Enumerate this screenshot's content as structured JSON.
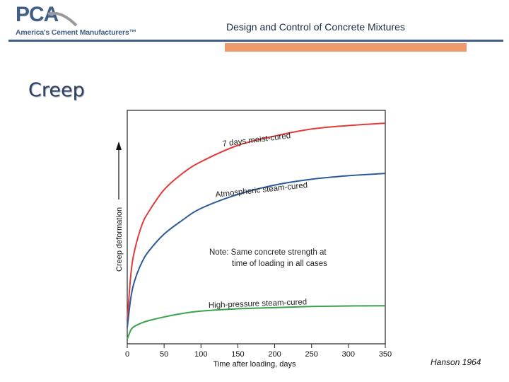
{
  "header": {
    "logo_text": "PCA",
    "logo_subtitle": "America's Cement Manufacturers™",
    "title": "Design and Control of Concrete Mixtures"
  },
  "slide": {
    "title": "Creep",
    "citation": "Hanson 1964"
  },
  "colors": {
    "brand_blue": "#3f5f86",
    "accent_orange": "#f0996a",
    "series_red": "#e23b3b",
    "series_blue": "#2c5a9b",
    "series_green": "#3aa24a"
  },
  "chart_data": {
    "type": "line",
    "xlabel": "Time after loading, days",
    "ylabel": "Creep deformation",
    "xlim": [
      0,
      350
    ],
    "ylim": [
      0,
      1
    ],
    "xticks": [
      0,
      50,
      100,
      150,
      200,
      250,
      300,
      350
    ],
    "grid": false,
    "note": "Note: Same concrete strength at time of loading in all cases",
    "series": [
      {
        "name": "7 days moist-cured",
        "color": "#e23b3b",
        "x": [
          0,
          5,
          10,
          20,
          30,
          50,
          75,
          100,
          150,
          200,
          250,
          300,
          350
        ],
        "y": [
          0.1,
          0.3,
          0.4,
          0.51,
          0.57,
          0.66,
          0.73,
          0.78,
          0.85,
          0.89,
          0.92,
          0.935,
          0.945
        ]
      },
      {
        "name": "Atmospheric steam-cured",
        "color": "#2c5a9b",
        "x": [
          0,
          5,
          10,
          20,
          30,
          50,
          75,
          100,
          150,
          200,
          250,
          300,
          350
        ],
        "y": [
          0.07,
          0.2,
          0.27,
          0.35,
          0.4,
          0.47,
          0.53,
          0.58,
          0.64,
          0.68,
          0.705,
          0.72,
          0.73
        ]
      },
      {
        "name": "High-pressure steam-cured",
        "color": "#3aa24a",
        "x": [
          0,
          5,
          10,
          20,
          30,
          50,
          75,
          100,
          150,
          200,
          250,
          300,
          350
        ],
        "y": [
          0.02,
          0.06,
          0.075,
          0.09,
          0.1,
          0.115,
          0.13,
          0.14,
          0.15,
          0.155,
          0.16,
          0.162,
          0.163
        ]
      }
    ]
  }
}
